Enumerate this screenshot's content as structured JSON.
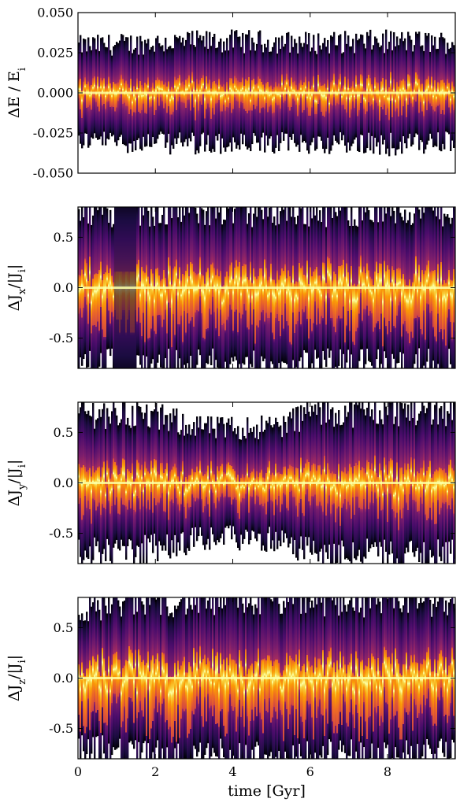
{
  "colors": {
    "colormap": "inferno",
    "stops": [
      "#000004",
      "#1b0c41",
      "#4a0c6b",
      "#781c6d",
      "#a52c60",
      "#cf4446",
      "#ed6925",
      "#fb9b06",
      "#f7d13d",
      "#fcffa4"
    ],
    "frame": "#000000",
    "background": "#ffffff"
  },
  "chart_data": [
    {
      "type": "heatmap",
      "description_of_values": "density of relative energy error vs time",
      "ylabel": "ΔE/E_i",
      "ylabel_tex": "ΔE / E",
      "ylabel_sub": "i",
      "ylim": [
        -0.05,
        0.05
      ],
      "yticks": [
        0.05,
        0.025,
        0.0,
        -0.025,
        -0.05
      ],
      "yticklabels": [
        "0.050",
        "0.025",
        "0.000",
        "-0.025",
        "-0.050"
      ],
      "xlim": [
        0,
        9.75
      ],
      "xticks": [
        0,
        2,
        4,
        6,
        8
      ],
      "xticklabels_visible": false,
      "envelope_halfwidth": [
        {
          "x": 0,
          "y": 0.03
        },
        {
          "x": 2,
          "y": 0.032
        },
        {
          "x": 4,
          "y": 0.033
        },
        {
          "x": 6,
          "y": 0.032
        },
        {
          "x": 8,
          "y": 0.033
        },
        {
          "x": 9.75,
          "y": 0.032
        }
      ],
      "core_width_ratio": 0.12
    },
    {
      "type": "heatmap",
      "ylabel": "ΔJ_x/|J_i|",
      "ylabel_tex": "ΔJ",
      "ylabel_sub": "x",
      "ylim": [
        -0.8,
        0.8
      ],
      "yticks": [
        0.5,
        0.0,
        -0.5
      ],
      "yticklabels": [
        "0.5",
        "0.0",
        "-0.5"
      ],
      "xlim": [
        0,
        9.75
      ],
      "xticks": [
        0,
        2,
        4,
        6,
        8
      ],
      "xticklabels_visible": false,
      "envelope_halfwidth": [
        {
          "x": 0,
          "y": 0.8
        },
        {
          "x": 0.9,
          "y": 0.8
        },
        {
          "x": 1.4,
          "y": 0.8
        },
        {
          "x": 2,
          "y": 0.8
        },
        {
          "x": 9.75,
          "y": 0.8
        }
      ],
      "dark_band": [
        0.9,
        1.5
      ],
      "core_width_ratio": 0.18
    },
    {
      "type": "heatmap",
      "ylabel": "ΔJ_y/|J_i|",
      "ylabel_tex": "ΔJ",
      "ylabel_sub": "y",
      "ylim": [
        -0.8,
        0.8
      ],
      "yticks": [
        0.5,
        0.0,
        -0.5
      ],
      "yticklabels": [
        "0.5",
        "0.0",
        "-0.5"
      ],
      "xlim": [
        0,
        9.75
      ],
      "xticks": [
        0,
        2,
        4,
        6,
        8
      ],
      "xticklabels_visible": false,
      "envelope_halfwidth": [
        {
          "x": 0,
          "y": 0.72
        },
        {
          "x": 1.5,
          "y": 0.7
        },
        {
          "x": 3.5,
          "y": 0.55
        },
        {
          "x": 5.2,
          "y": 0.58
        },
        {
          "x": 6,
          "y": 0.72
        },
        {
          "x": 9.75,
          "y": 0.75
        }
      ],
      "core_width_ratio": 0.14
    },
    {
      "type": "heatmap",
      "ylabel": "ΔJ_z/|J_i|",
      "ylabel_tex": "ΔJ",
      "ylabel_sub": "z",
      "ylim": [
        -0.8,
        0.8
      ],
      "yticks": [
        0.5,
        0.0,
        -0.5
      ],
      "yticklabels": [
        "0.5",
        "0.0",
        "-0.5"
      ],
      "xlim": [
        0,
        9.75
      ],
      "xticks": [
        0,
        2,
        4,
        6,
        8
      ],
      "xticklabels": [
        "0",
        "2",
        "4",
        "6",
        "8"
      ],
      "xticklabels_visible": true,
      "xlabel": "time [Gyr]",
      "envelope_halfwidth": [
        {
          "x": 0,
          "y": 0.7
        },
        {
          "x": 1.2,
          "y": 0.8
        },
        {
          "x": 2,
          "y": 0.8
        },
        {
          "x": 9.75,
          "y": 0.8
        }
      ],
      "core_width_ratio": 0.2
    }
  ]
}
